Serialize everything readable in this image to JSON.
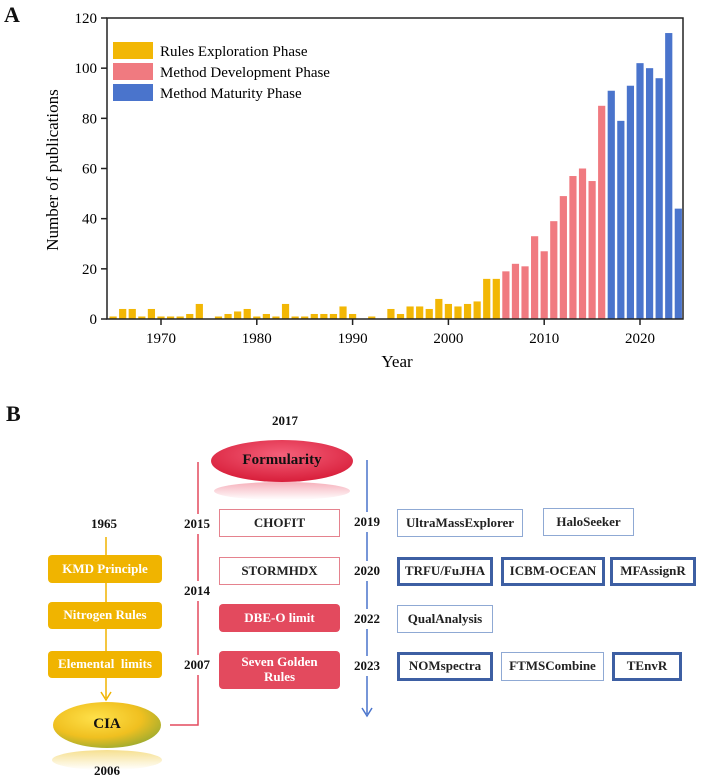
{
  "panel_a_label": "A",
  "panel_b_label": "B",
  "chart_data": {
    "type": "bar",
    "xlabel": "Year",
    "ylabel": "Number of publications",
    "ylim": [
      0,
      120
    ],
    "xlim": [
      1964.5,
      2024.6
    ],
    "yticks": [
      0,
      20,
      40,
      60,
      80,
      100,
      120
    ],
    "xticks": [
      1970,
      1980,
      1990,
      2000,
      2010,
      2020
    ],
    "legend_position": "top-left",
    "series": [
      {
        "name": "Rules Exploration Phase",
        "color": "#f2b705",
        "x": [
          1965,
          1966,
          1967,
          1968,
          1969,
          1970,
          1971,
          1972,
          1973,
          1974,
          1976,
          1977,
          1978,
          1979,
          1980,
          1981,
          1982,
          1983,
          1984,
          1985,
          1986,
          1987,
          1988,
          1989,
          1990,
          1992,
          1994,
          1995,
          1996,
          1997,
          1998,
          1999,
          2000,
          2001,
          2002,
          2003,
          2004,
          2005
        ],
        "values": [
          1,
          4,
          4,
          1,
          4,
          1,
          1,
          1,
          2,
          6,
          1,
          2,
          3,
          4,
          1,
          2,
          1,
          6,
          1,
          1,
          2,
          2,
          2,
          5,
          2,
          1,
          4,
          2,
          5,
          5,
          4,
          8,
          6,
          5,
          6,
          7,
          16,
          16
        ]
      },
      {
        "name": "Method Development Phase",
        "color": "#f07a80",
        "x": [
          2006,
          2007,
          2008,
          2009,
          2010,
          2011,
          2012,
          2013,
          2014,
          2015,
          2016
        ],
        "values": [
          19,
          22,
          21,
          33,
          27,
          39,
          49,
          57,
          60,
          55,
          85
        ]
      },
      {
        "name": "Method Maturity Phase",
        "color": "#4a74cc",
        "x": [
          2017,
          2018,
          2019,
          2020,
          2021,
          2022,
          2023,
          2024
        ],
        "values": [
          91,
          79,
          93,
          102,
          100,
          96,
          114,
          44
        ]
      }
    ]
  },
  "timeline": {
    "rules": {
      "start_year": "1965",
      "items": [
        "KMD Principle",
        "Nitrogen Rules",
        "Elemental  limits"
      ],
      "end_label": "CIA",
      "end_year": "2006"
    },
    "development": {
      "top_year": "2017",
      "top_label": "Formularity",
      "years": [
        "2015",
        "2014",
        "2007"
      ],
      "items": [
        "CHOFIT",
        "STORMHDX",
        "DBE-O limit",
        "Seven Golden Rules"
      ]
    },
    "maturity": {
      "rows": [
        {
          "year": "2019",
          "tools": [
            "UltraMassExplorer",
            "HaloSeeker"
          ]
        },
        {
          "year": "2020",
          "tools": [
            "TRFU/FuJHA",
            "ICBM-OCEAN",
            "MFAssignR"
          ]
        },
        {
          "year": "2022",
          "tools": [
            "QualAnalysis"
          ]
        },
        {
          "year": "2023",
          "tools": [
            "NOMspectra",
            "FTMSCombine",
            "TEnvR"
          ]
        }
      ]
    }
  }
}
